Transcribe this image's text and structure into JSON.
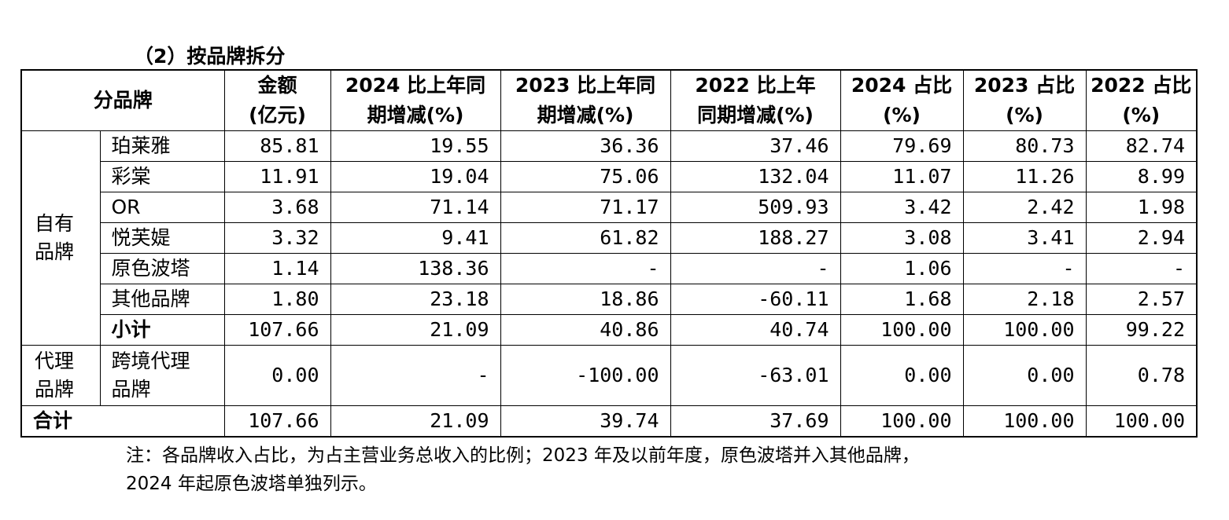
{
  "heading": "（2）按品牌拆分",
  "columns": {
    "brand": "分品牌",
    "amount": [
      "金额",
      "(亿元)"
    ],
    "yoy2024": [
      "2024 比上年同",
      "期增减(%)"
    ],
    "yoy2023": [
      "2023 比上年同",
      "期增减(%)"
    ],
    "yoy2022": [
      "2022 比上年",
      "同期增减(%)"
    ],
    "share2024": [
      "2024 占比",
      "(%)"
    ],
    "share2023": [
      "2023 占比",
      "(%)"
    ],
    "share2022": [
      "2022 占比",
      "(%)"
    ]
  },
  "groups": {
    "own": [
      "自有",
      "品牌"
    ],
    "agency": [
      "代理",
      "品牌"
    ]
  },
  "own_rows": [
    {
      "name": "珀莱雅",
      "values": [
        "85.81",
        "19.55",
        "36.36",
        "37.46",
        "79.69",
        "80.73",
        "82.74"
      ]
    },
    {
      "name": "彩棠",
      "values": [
        "11.91",
        "19.04",
        "75.06",
        "132.04",
        "11.07",
        "11.26",
        "8.99"
      ]
    },
    {
      "name": "OR",
      "values": [
        "3.68",
        "71.14",
        "71.17",
        "509.93",
        "3.42",
        "2.42",
        "1.98"
      ]
    },
    {
      "name": "悦芙媞",
      "values": [
        "3.32",
        "9.41",
        "61.82",
        "188.27",
        "3.08",
        "3.41",
        "2.94"
      ]
    },
    {
      "name": "原色波塔",
      "values": [
        "1.14",
        "138.36",
        "-",
        "-",
        "1.06",
        "-",
        "-"
      ]
    },
    {
      "name": "其他品牌",
      "values": [
        "1.80",
        "23.18",
        "18.86",
        "-60.11",
        "1.68",
        "2.18",
        "2.57"
      ]
    },
    {
      "name": "小计",
      "values": [
        "107.66",
        "21.09",
        "40.86",
        "40.74",
        "100.00",
        "100.00",
        "99.22"
      ]
    }
  ],
  "agency_row": {
    "name": [
      "跨境代理",
      "品牌"
    ],
    "values": [
      "0.00",
      "-",
      "-100.00",
      "-63.01",
      "0.00",
      "0.00",
      "0.78"
    ]
  },
  "total_row": {
    "name": "合计",
    "values": [
      "107.66",
      "21.09",
      "39.74",
      "37.69",
      "100.00",
      "100.00",
      "100.00"
    ]
  },
  "note": [
    "注：各品牌收入占比，为占主营业务总收入的比例；2023 年及以前年度，原色波塔并入其他品牌，",
    "2024 年起原色波塔单独列示。"
  ]
}
